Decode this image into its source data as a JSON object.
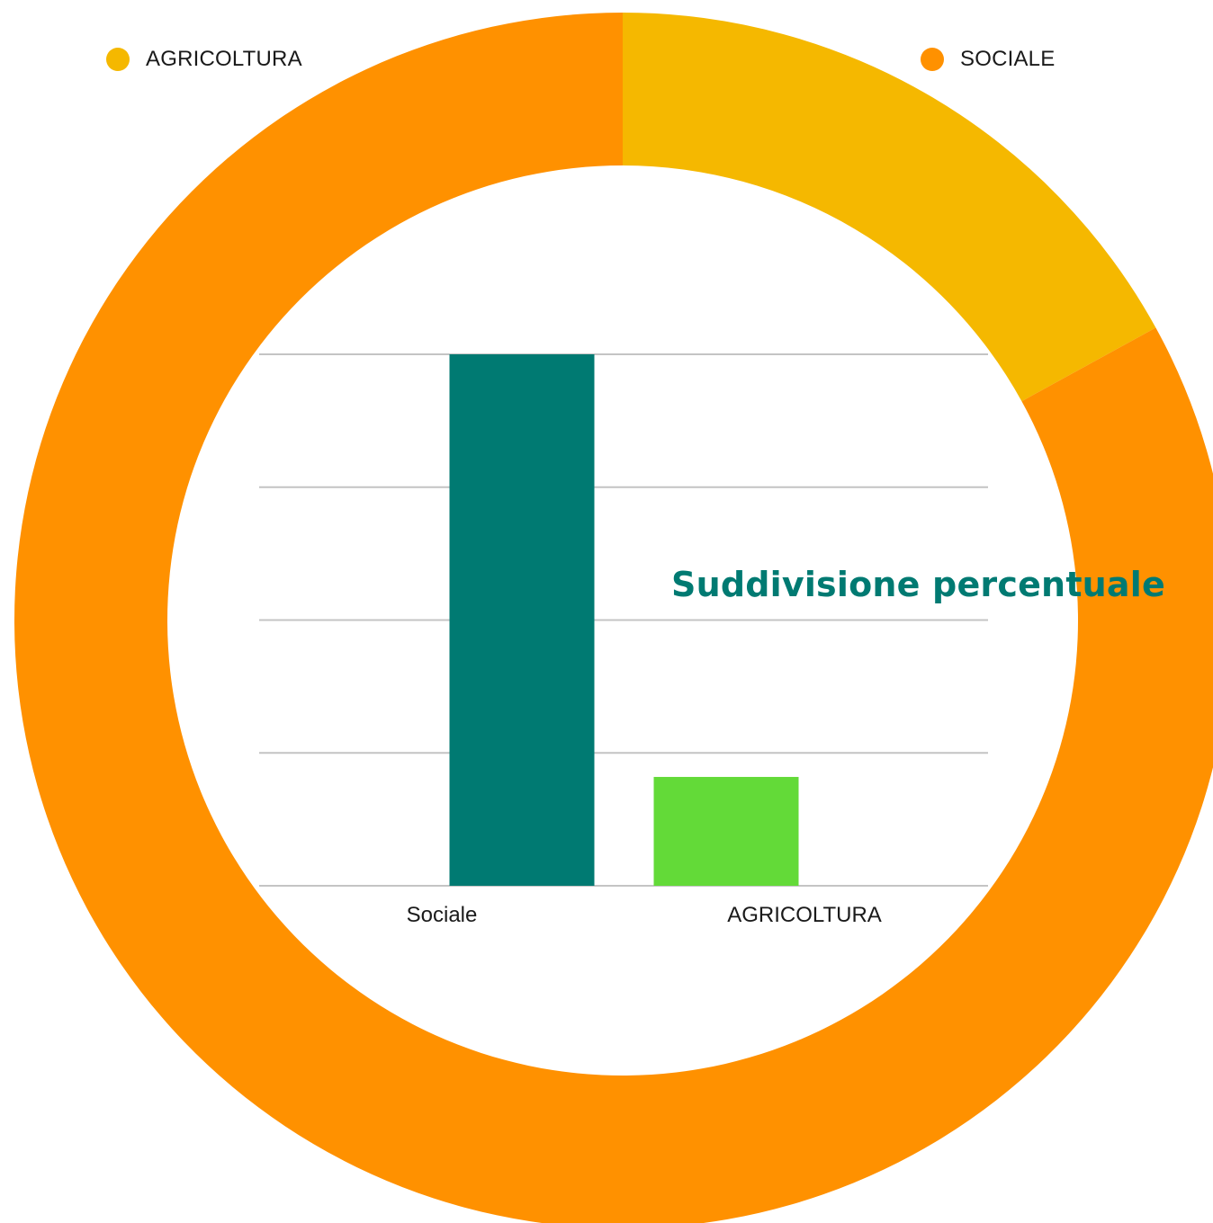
{
  "chart_data": [
    {
      "type": "pie",
      "variant": "donut",
      "legend": [
        {
          "label": "AGRICOLTURA",
          "color": "#F5B800"
        },
        {
          "label": "SOCIALE",
          "color": "#FF9100"
        }
      ],
      "slices": [
        {
          "label": "AGRICOLTURA",
          "value": 17,
          "color": "#F5B800"
        },
        {
          "label": "SOCIALE",
          "value": 83,
          "color": "#FF9100"
        }
      ],
      "start_angle": "12 o'clock, clockwise"
    },
    {
      "type": "bar",
      "title": "Suddivisione percentuale",
      "categories": [
        "Sociale",
        "AGRICOLTURA"
      ],
      "values": [
        83,
        17
      ],
      "colors": [
        "#007A72",
        "#63DA38"
      ],
      "ylim": [
        0,
        83
      ],
      "gridlines": [
        0,
        20.75,
        41.5,
        62.25,
        83
      ],
      "grid": true,
      "y_ticks_shown": false
    }
  ]
}
